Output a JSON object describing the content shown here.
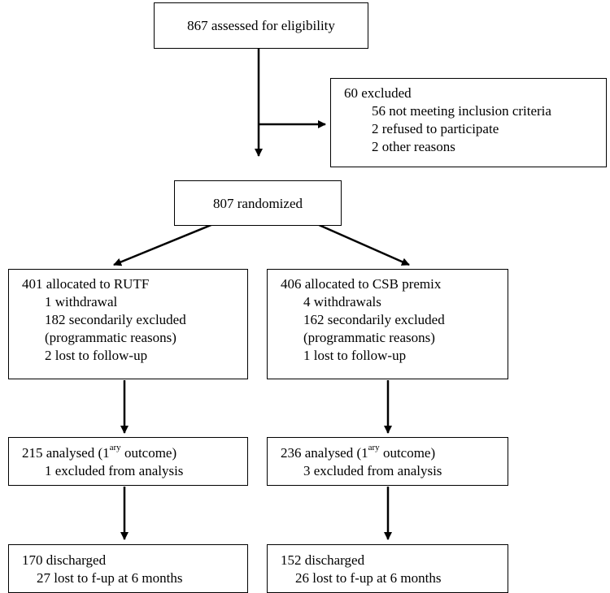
{
  "assessed": {
    "text": "867 assessed for eligibility"
  },
  "excluded": {
    "title": "60 excluded",
    "items": [
      "56 not meeting inclusion criteria",
      "2 refused to participate",
      "2 other reasons"
    ]
  },
  "randomized": {
    "text": "807 randomized"
  },
  "rutf": {
    "title": "401 allocated to RUTF",
    "items": [
      "1 withdrawal",
      "182 secondarily excluded",
      "(programmatic reasons)",
      "2 lost to follow-up"
    ],
    "analysed": {
      "prefix": "215 analysed (1",
      "sup": "ary",
      "suffix": " outcome)",
      "excluded": "1 excluded from analysis"
    },
    "discharged": {
      "title": "170 discharged",
      "lost": "27 lost to f-up at 6 months"
    }
  },
  "csb": {
    "title": "406 allocated to CSB premix",
    "items": [
      "4 withdrawals",
      "162 secondarily excluded",
      "(programmatic reasons)",
      "1 lost to follow-up"
    ],
    "analysed": {
      "prefix": "236 analysed (1",
      "sup": "ary",
      "suffix": " outcome)",
      "excluded": "3 excluded from analysis"
    },
    "discharged": {
      "title": "152 discharged",
      "lost": "26 lost to f-up at 6 months"
    }
  }
}
